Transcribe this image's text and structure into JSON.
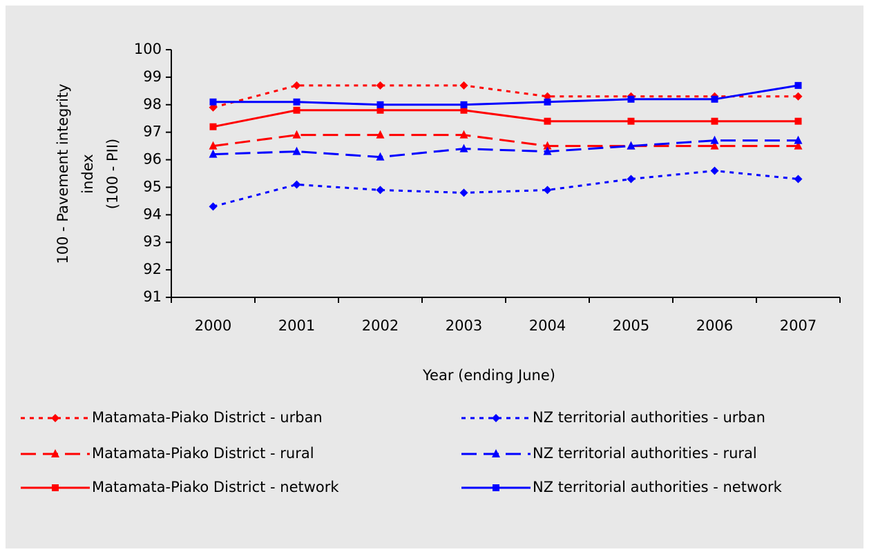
{
  "chart_data": {
    "type": "line",
    "xlabel": "Year (ending June)",
    "ylabel": [
      "100 - Pavement integrity",
      "index",
      "(100 - PII)"
    ],
    "categories": [
      "2000",
      "2001",
      "2002",
      "2003",
      "2004",
      "2005",
      "2006",
      "2007"
    ],
    "ylim": [
      91,
      100
    ],
    "yticks": [
      91,
      92,
      93,
      94,
      95,
      96,
      97,
      98,
      99,
      100
    ],
    "grid": false,
    "series": [
      {
        "name": "Matamata-Piako District - urban",
        "color": "#ff0000",
        "dash": "dotted",
        "marker": "diamond",
        "values": [
          97.9,
          98.7,
          98.7,
          98.7,
          98.3,
          98.3,
          98.3,
          98.3
        ]
      },
      {
        "name": "Matamata-Piako District - rural",
        "color": "#ff0000",
        "dash": "dashed",
        "marker": "triangle",
        "values": [
          96.5,
          96.9,
          96.9,
          96.9,
          96.5,
          96.5,
          96.5,
          96.5
        ]
      },
      {
        "name": "Matamata-Piako District - network",
        "color": "#ff0000",
        "dash": "solid",
        "marker": "square",
        "values": [
          97.2,
          97.8,
          97.8,
          97.8,
          97.4,
          97.4,
          97.4,
          97.4
        ]
      },
      {
        "name": "NZ territorial authorities - urban",
        "color": "#0000ff",
        "dash": "dotted",
        "marker": "diamond",
        "values": [
          94.3,
          95.1,
          94.9,
          94.8,
          94.9,
          95.3,
          95.6,
          95.3
        ]
      },
      {
        "name": "NZ territorial authorities - rural",
        "color": "#0000ff",
        "dash": "dashed",
        "marker": "triangle",
        "values": [
          96.2,
          96.3,
          96.1,
          96.4,
          96.3,
          96.5,
          96.7,
          96.7
        ]
      },
      {
        "name": "NZ territorial authorities - network",
        "color": "#0000ff",
        "dash": "solid",
        "marker": "square",
        "values": [
          98.1,
          98.1,
          98.0,
          98.0,
          98.1,
          98.2,
          98.2,
          98.7
        ]
      }
    ]
  }
}
